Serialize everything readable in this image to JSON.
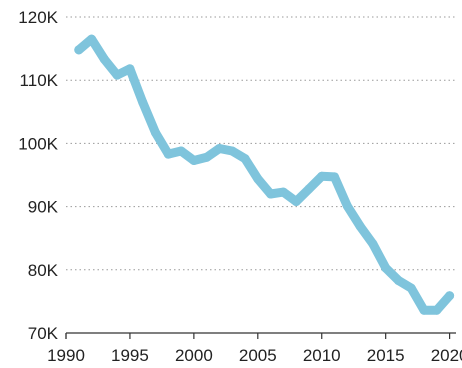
{
  "chart_data": {
    "type": "line",
    "title": "",
    "xlabel": "",
    "ylabel": "",
    "x_ticks": [
      1990,
      1995,
      2000,
      2005,
      2010,
      2015,
      2020
    ],
    "x_tick_labels": [
      "1990",
      "1995",
      "2000",
      "2005",
      "2010",
      "2015",
      "2020"
    ],
    "y_ticks": [
      70000,
      80000,
      90000,
      100000,
      110000,
      120000
    ],
    "y_tick_labels": [
      "70K",
      "80K",
      "90K",
      "100K",
      "110K",
      "120K"
    ],
    "xlim": [
      1990,
      2020.5
    ],
    "ylim": [
      70000,
      120000
    ],
    "grid": "horizontal dotted",
    "legend": "none",
    "series": [
      {
        "color": "#7fc4dc",
        "x": [
          1991,
          1992,
          1993,
          1994,
          1995,
          1996,
          1997,
          1998,
          1999,
          2000,
          2001,
          2002,
          2003,
          2004,
          2005,
          2006,
          2007,
          2008,
          2009,
          2010,
          2011,
          2012,
          2013,
          2014,
          2015,
          2016,
          2017,
          2018,
          2019,
          2020
        ],
        "y": [
          114800,
          116500,
          113300,
          110800,
          111800,
          106500,
          101700,
          98300,
          98800,
          97300,
          97800,
          99200,
          98800,
          97600,
          94400,
          92000,
          92300,
          90800,
          92800,
          94800,
          94700,
          90100,
          86900,
          84100,
          80300,
          78300,
          77100,
          73600,
          73600,
          75900
        ]
      }
    ]
  }
}
